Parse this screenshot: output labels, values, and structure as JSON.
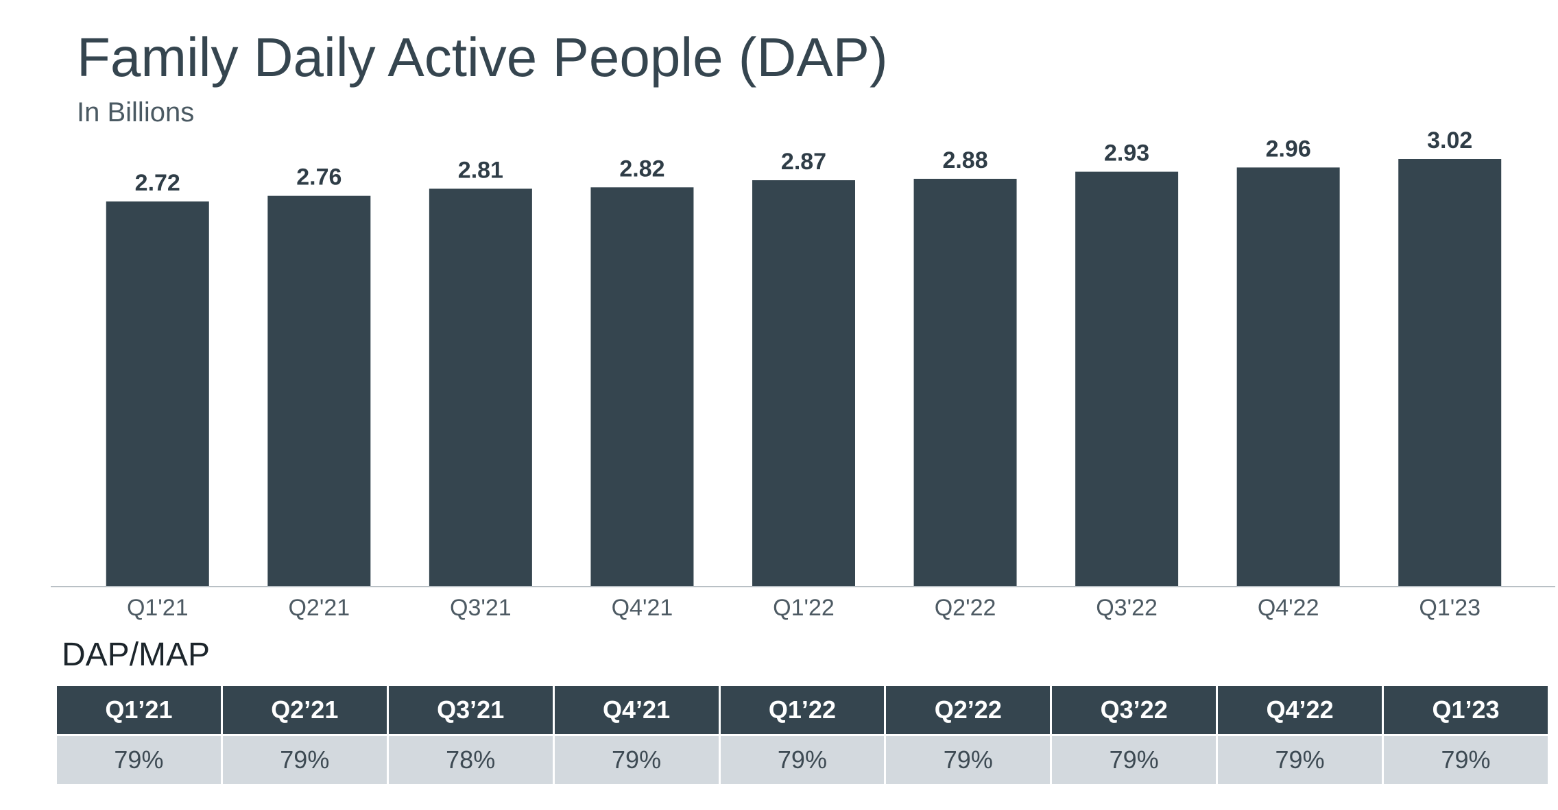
{
  "header": {
    "title": "Family Daily Active People (DAP)",
    "subtitle": "In Billions"
  },
  "chart_data": {
    "type": "bar",
    "title": "Family Daily Active People (DAP)",
    "subtitle": "In Billions",
    "categories": [
      "Q1'21",
      "Q2'21",
      "Q3'21",
      "Q4'21",
      "Q1'22",
      "Q2'22",
      "Q3'22",
      "Q4'22",
      "Q1'23"
    ],
    "values": [
      2.72,
      2.76,
      2.81,
      2.82,
      2.87,
      2.88,
      2.93,
      2.96,
      3.02
    ],
    "data_labels": [
      "2.72",
      "2.76",
      "2.81",
      "2.82",
      "2.87",
      "2.88",
      "2.93",
      "2.96",
      "3.02"
    ],
    "ylim": [
      0,
      3.02
    ],
    "grid": false,
    "legend": "none",
    "bar_color": "#35454f"
  },
  "table": {
    "title": "DAP/MAP",
    "headers": [
      "Q1’21",
      "Q2’21",
      "Q3’21",
      "Q4’21",
      "Q1’22",
      "Q2’22",
      "Q3’22",
      "Q4’22",
      "Q1’23"
    ],
    "values": [
      "79%",
      "79%",
      "78%",
      "79%",
      "79%",
      "79%",
      "79%",
      "79%",
      "79%"
    ],
    "header_color": "#35454f",
    "row_color": "#d3d9de"
  }
}
